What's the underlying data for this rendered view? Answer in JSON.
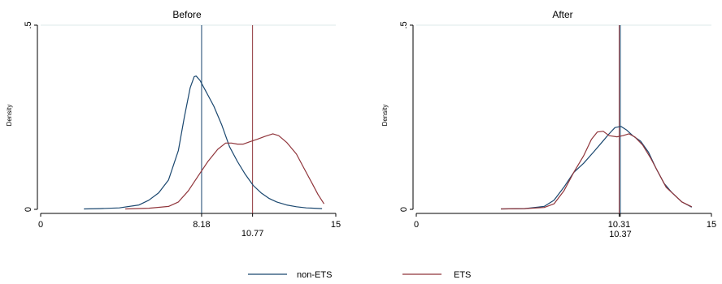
{
  "chart_data": [
    {
      "type": "line",
      "title": "Before",
      "xlabel": "",
      "ylabel": "Density",
      "xlim": [
        0,
        15
      ],
      "ylim": [
        0,
        0.5
      ],
      "x_ticks": [
        0,
        15
      ],
      "y_ticks": [
        {
          "value": 0,
          "label": "0"
        },
        {
          "value": 0.5,
          "label": ".5"
        }
      ],
      "vlines": [
        {
          "series": "non-ETS",
          "value": 8.18,
          "label": "8.18"
        },
        {
          "series": "ETS",
          "value": 10.77,
          "label": "10.77"
        }
      ],
      "series": [
        {
          "name": "non-ETS",
          "color": "#1a476f",
          "points": [
            [
              2.2,
              0.001
            ],
            [
              3.0,
              0.002
            ],
            [
              4.0,
              0.004
            ],
            [
              5.0,
              0.012
            ],
            [
              5.5,
              0.025
            ],
            [
              6.0,
              0.045
            ],
            [
              6.5,
              0.08
            ],
            [
              7.0,
              0.16
            ],
            [
              7.3,
              0.25
            ],
            [
              7.6,
              0.33
            ],
            [
              7.8,
              0.36
            ],
            [
              7.9,
              0.362
            ],
            [
              8.1,
              0.35
            ],
            [
              8.4,
              0.32
            ],
            [
              8.8,
              0.28
            ],
            [
              9.2,
              0.23
            ],
            [
              9.6,
              0.17
            ],
            [
              10.0,
              0.13
            ],
            [
              10.4,
              0.095
            ],
            [
              10.8,
              0.065
            ],
            [
              11.2,
              0.045
            ],
            [
              11.6,
              0.03
            ],
            [
              12.0,
              0.02
            ],
            [
              12.5,
              0.012
            ],
            [
              13.0,
              0.007
            ],
            [
              13.5,
              0.004
            ],
            [
              14.3,
              0.002
            ]
          ]
        },
        {
          "name": "ETS",
          "color": "#90353b",
          "points": [
            [
              4.3,
              0.001
            ],
            [
              5.5,
              0.003
            ],
            [
              6.5,
              0.008
            ],
            [
              7.0,
              0.02
            ],
            [
              7.5,
              0.05
            ],
            [
              8.0,
              0.09
            ],
            [
              8.5,
              0.13
            ],
            [
              9.0,
              0.163
            ],
            [
              9.4,
              0.18
            ],
            [
              9.7,
              0.18
            ],
            [
              10.0,
              0.177
            ],
            [
              10.3,
              0.177
            ],
            [
              10.6,
              0.183
            ],
            [
              11.0,
              0.19
            ],
            [
              11.4,
              0.198
            ],
            [
              11.8,
              0.205
            ],
            [
              12.1,
              0.2
            ],
            [
              12.5,
              0.182
            ],
            [
              13.0,
              0.15
            ],
            [
              13.4,
              0.11
            ],
            [
              13.8,
              0.07
            ],
            [
              14.1,
              0.04
            ],
            [
              14.4,
              0.015
            ]
          ]
        }
      ]
    },
    {
      "type": "line",
      "title": "After",
      "xlabel": "",
      "ylabel": "Density",
      "xlim": [
        0,
        15
      ],
      "ylim": [
        0,
        0.5
      ],
      "x_ticks": [
        0,
        15
      ],
      "y_ticks": [
        {
          "value": 0,
          "label": "0"
        },
        {
          "value": 0.5,
          "label": ".5"
        }
      ],
      "vlines": [
        {
          "series": "ETS",
          "value": 10.31,
          "label": "10.31"
        },
        {
          "series": "non-ETS",
          "value": 10.37,
          "label": "10.37"
        }
      ],
      "series": [
        {
          "name": "non-ETS",
          "color": "#1a476f",
          "points": [
            [
              4.3,
              0.001
            ],
            [
              5.5,
              0.002
            ],
            [
              6.5,
              0.008
            ],
            [
              7.0,
              0.025
            ],
            [
              7.5,
              0.06
            ],
            [
              8.0,
              0.1
            ],
            [
              8.5,
              0.125
            ],
            [
              9.0,
              0.155
            ],
            [
              9.4,
              0.18
            ],
            [
              9.8,
              0.205
            ],
            [
              10.1,
              0.222
            ],
            [
              10.4,
              0.225
            ],
            [
              10.7,
              0.215
            ],
            [
              11.0,
              0.2
            ],
            [
              11.4,
              0.185
            ],
            [
              11.8,
              0.155
            ],
            [
              12.2,
              0.11
            ],
            [
              12.6,
              0.07
            ],
            [
              13.0,
              0.045
            ],
            [
              13.5,
              0.02
            ],
            [
              14.0,
              0.006
            ]
          ]
        },
        {
          "name": "ETS",
          "color": "#90353b",
          "points": [
            [
              4.3,
              0.001
            ],
            [
              5.5,
              0.002
            ],
            [
              6.5,
              0.005
            ],
            [
              7.0,
              0.015
            ],
            [
              7.5,
              0.05
            ],
            [
              8.0,
              0.1
            ],
            [
              8.5,
              0.145
            ],
            [
              8.9,
              0.19
            ],
            [
              9.2,
              0.21
            ],
            [
              9.5,
              0.212
            ],
            [
              9.8,
              0.2
            ],
            [
              10.2,
              0.197
            ],
            [
              10.5,
              0.2
            ],
            [
              10.8,
              0.205
            ],
            [
              11.1,
              0.197
            ],
            [
              11.5,
              0.175
            ],
            [
              11.9,
              0.14
            ],
            [
              12.3,
              0.1
            ],
            [
              12.7,
              0.06
            ],
            [
              13.1,
              0.04
            ],
            [
              13.5,
              0.02
            ],
            [
              14.0,
              0.007
            ]
          ]
        }
      ]
    }
  ],
  "legend": {
    "position": "bottom",
    "items": [
      {
        "label": "non-ETS",
        "color": "#1a476f"
      },
      {
        "label": "ETS",
        "color": "#90353b"
      }
    ]
  }
}
